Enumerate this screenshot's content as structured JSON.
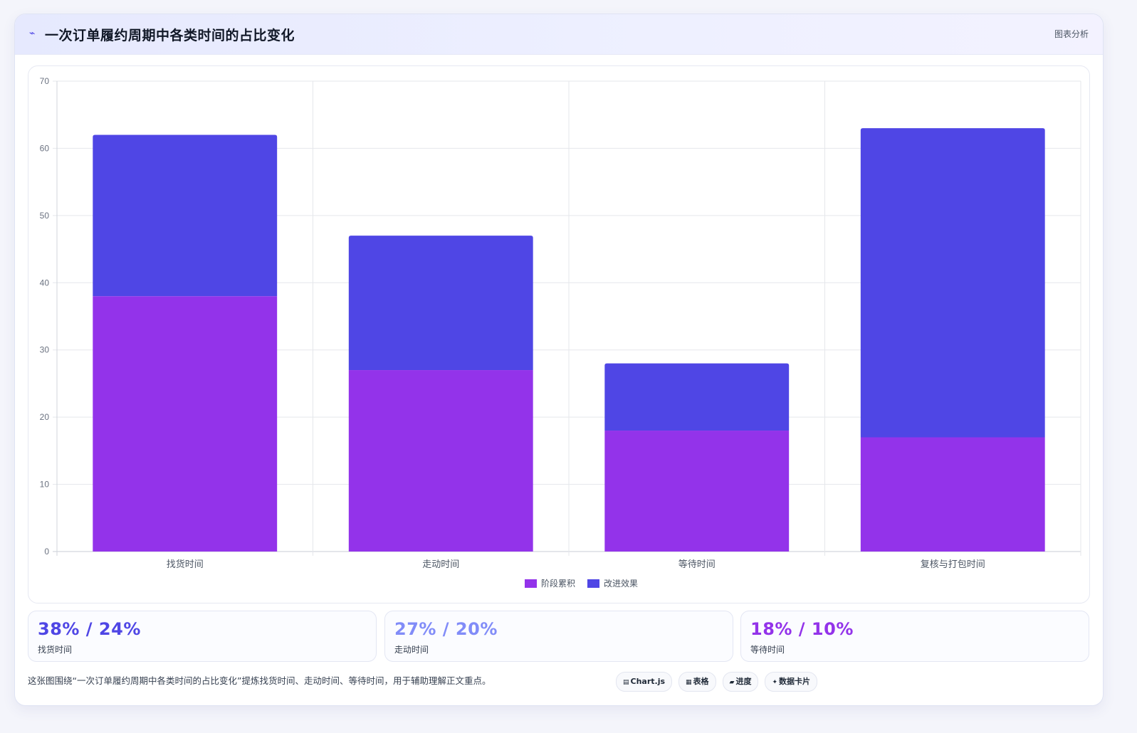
{
  "header": {
    "icon": "chart-line-icon",
    "title": "一次订单履约周期中各类时间的占比变化",
    "tag": "图表分析"
  },
  "chart_data": {
    "type": "bar",
    "stacked": true,
    "categories": [
      "找货时间",
      "走动时间",
      "等待时间",
      "复核与打包时间"
    ],
    "series": [
      {
        "name": "阶段累积",
        "values": [
          38,
          27,
          18,
          17
        ],
        "color": "#9333ea"
      },
      {
        "name": "改进效果",
        "values": [
          24,
          20,
          10,
          46
        ],
        "color": "#4f46e5"
      }
    ],
    "ylim": [
      0,
      70
    ],
    "yticks": [
      0,
      10,
      20,
      30,
      40,
      50,
      60,
      70
    ],
    "grid": true,
    "legend": "bottom"
  },
  "stats": [
    {
      "value": "38% / 24%",
      "label": "找货时间",
      "color": "#4f46e5"
    },
    {
      "value": "27% / 20%",
      "label": "走动时间",
      "color": "#818cf8"
    },
    {
      "value": "18% / 10%",
      "label": "等待时间",
      "color": "#9333ea"
    }
  ],
  "footer": {
    "text": "这张图围绕“一次订单履约周期中各类时间的占比变化”提炼找货时间、走动时间、等待时间，用于辅助理解正文重点。",
    "chips": [
      {
        "icon": "▤",
        "label": "Chart.js"
      },
      {
        "icon": "▦",
        "label": "表格"
      },
      {
        "icon": "▰",
        "label": "进度"
      },
      {
        "icon": "✦",
        "label": "数据卡片"
      }
    ]
  }
}
